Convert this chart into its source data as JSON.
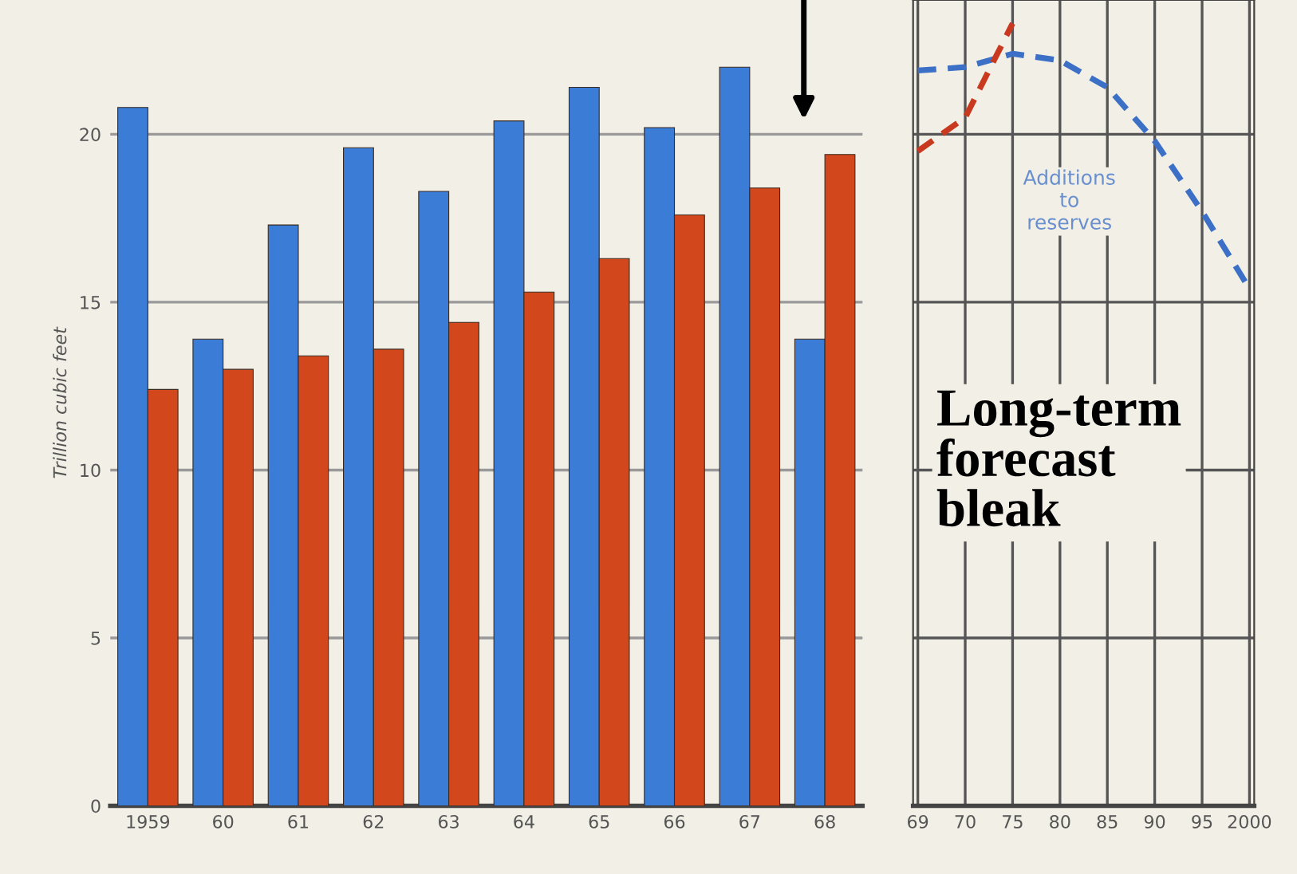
{
  "chart_data": [
    {
      "type": "bar",
      "categories": [
        "1959",
        "60",
        "61",
        "62",
        "63",
        "64",
        "65",
        "66",
        "67",
        "68"
      ],
      "series": [
        {
          "color": "#3b7dd6",
          "values": [
            20.8,
            13.9,
            17.3,
            19.6,
            18.3,
            20.4,
            21.4,
            20.2,
            22.0,
            13.9
          ]
        },
        {
          "color": "#d2481c",
          "values": [
            12.4,
            13.0,
            13.4,
            13.6,
            14.4,
            15.3,
            16.3,
            17.6,
            18.4,
            19.4
          ]
        }
      ],
      "ylim": [
        0,
        24
      ],
      "yticks": [
        0,
        5,
        10,
        15,
        20
      ],
      "ylabel": "Trillion cubic feet",
      "grid": "y"
    },
    {
      "type": "line",
      "categories": [
        "69",
        "70",
        "75",
        "80",
        "85",
        "90",
        "95",
        "2000"
      ],
      "series": [
        {
          "name": "Additions to reserves",
          "color": "#3c6fc6",
          "values": [
            21.9,
            22.0,
            22.4,
            22.2,
            21.4,
            19.8,
            17.7,
            15.4
          ]
        },
        {
          "color": "#c8391f",
          "values": [
            19.5,
            20.5,
            23.3,
            null,
            null,
            null,
            null,
            null
          ]
        }
      ],
      "ylim": [
        0,
        24
      ],
      "yticks": [
        0,
        5,
        10,
        15,
        20
      ],
      "tick_labels": "x",
      "grid": true,
      "line_style": "dashed",
      "annotations": [
        "Long-term forecast bleak"
      ]
    }
  ]
}
